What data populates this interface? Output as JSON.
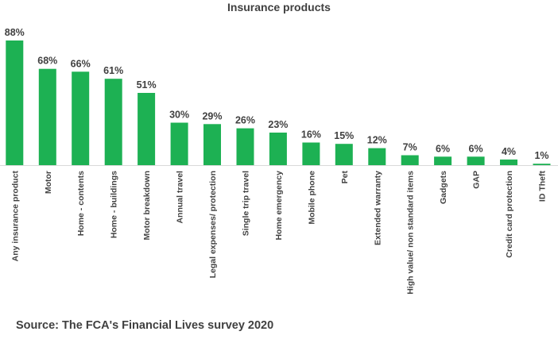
{
  "chart_data": {
    "type": "bar",
    "title": "Insurance products",
    "categories": [
      "Any insurance product",
      "Motor",
      "Home - contents",
      "Home - buildings",
      "Motor breakdown",
      "Annual travel",
      "Legal expenses/ protection",
      "Single trip travel",
      "Home emergency",
      "Mobile phone",
      "Pet",
      "Extended warranty",
      "High value/ non standard items",
      "Gadgets",
      "GAP",
      "Credit card protection",
      "ID Theft"
    ],
    "values": [
      88,
      68,
      66,
      61,
      51,
      30,
      29,
      26,
      23,
      16,
      15,
      12,
      7,
      6,
      6,
      4,
      1
    ],
    "value_labels": [
      "88%",
      "68%",
      "66%",
      "61%",
      "51%",
      "30%",
      "29%",
      "26%",
      "23%",
      "16%",
      "15%",
      "12%",
      "7%",
      "6%",
      "6%",
      "4%",
      "1%"
    ],
    "ylim": [
      0,
      100
    ],
    "bar_color": "#1db153",
    "grid": false,
    "legend": "none"
  },
  "footer": {
    "source": "Source: The FCA's Financial Lives survey 2020"
  }
}
